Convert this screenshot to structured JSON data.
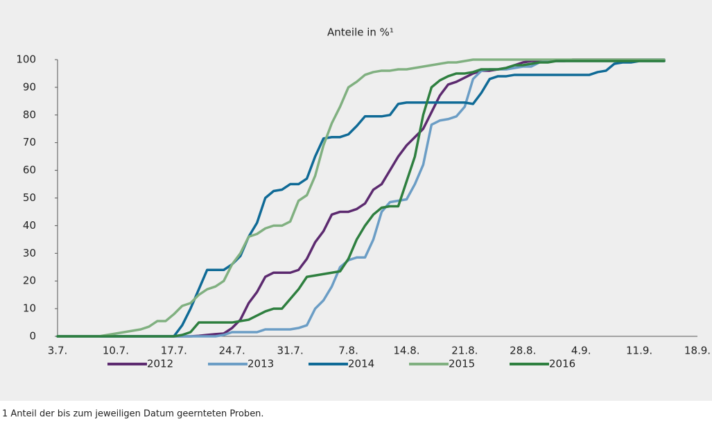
{
  "chart_data": {
    "type": "line",
    "title": "Anteile in %¹",
    "footnote": "1 Anteil der bis zum jeweiligen Datum geernteten Proben.",
    "categories": [
      "3.7.",
      null,
      null,
      null,
      null,
      null,
      null,
      "10.7.",
      null,
      null,
      null,
      null,
      null,
      null,
      "17.7.",
      null,
      null,
      null,
      null,
      null,
      null,
      "24.7.",
      null,
      null,
      null,
      null,
      null,
      null,
      "31.7.",
      null,
      null,
      null,
      null,
      null,
      null,
      "7.8.",
      null,
      null,
      null,
      null,
      null,
      null,
      "14.8.",
      null,
      null,
      null,
      null,
      null,
      null,
      "21.8.",
      null,
      null,
      null,
      null,
      null,
      null,
      "28.8.",
      null,
      null,
      null,
      null,
      null,
      null,
      "4.9.",
      null,
      null,
      null,
      null,
      null,
      null,
      "11.9.",
      null,
      null,
      null,
      null,
      null,
      null,
      "18.9."
    ],
    "ylim": [
      0,
      100
    ],
    "yticks": [
      0,
      10,
      20,
      30,
      40,
      50,
      60,
      70,
      80,
      90,
      100
    ],
    "grid": false,
    "series": [
      {
        "name": "2012",
        "color": "#5c2a6f",
        "values": [
          0,
          0,
          0,
          0,
          0,
          0,
          0,
          0,
          0,
          0,
          0,
          0,
          0,
          0,
          0,
          0,
          0,
          0.2,
          0.5,
          0.8,
          1,
          3,
          6,
          12,
          16,
          21.5,
          23,
          23,
          23,
          24,
          28,
          34,
          38,
          44,
          45,
          45,
          46,
          48,
          53,
          55,
          60,
          65,
          69,
          72,
          75,
          81,
          87,
          91,
          92,
          93.5,
          95,
          96,
          96,
          96.5,
          97,
          98,
          99,
          99.5,
          99.5,
          99.5,
          99.5,
          99.5,
          100,
          100,
          100,
          100,
          100,
          100,
          100,
          100,
          100,
          100,
          100,
          100,
          null,
          null,
          null,
          null
        ]
      },
      {
        "name": "2013",
        "color": "#6b9dc5",
        "values": [
          0,
          0,
          0,
          0,
          0,
          0,
          0,
          0,
          0,
          0,
          0,
          0,
          0,
          0,
          0,
          0,
          0,
          0,
          0,
          0,
          0.5,
          1.5,
          1.5,
          1.5,
          1.5,
          2.5,
          2.5,
          2.5,
          2.5,
          3,
          4,
          10,
          13,
          18,
          25,
          27.5,
          28.5,
          28.5,
          35,
          45,
          48.5,
          49,
          49.5,
          55,
          62,
          76.5,
          78,
          78.5,
          79.5,
          83,
          93,
          96,
          96.5,
          96.5,
          96.5,
          97,
          97.5,
          97.5,
          99,
          99.5,
          99.5,
          99.5,
          99.5,
          99.5,
          99.5,
          99.5,
          99.5,
          99.5,
          99.5,
          99.5,
          100,
          100,
          100,
          100,
          null,
          null,
          null,
          null
        ]
      },
      {
        "name": "2014",
        "color": "#0f6a96",
        "values": [
          0,
          0,
          0,
          0,
          0,
          0,
          0,
          0,
          0,
          0,
          0,
          0,
          0,
          0,
          0,
          4,
          10,
          17,
          24,
          24,
          24,
          26,
          29,
          36,
          41,
          50,
          52.5,
          53,
          55,
          55,
          57,
          65,
          71.5,
          72,
          72,
          73,
          76,
          79.5,
          79.5,
          79.5,
          80,
          84,
          84.5,
          84.5,
          84.5,
          84.5,
          84.5,
          84.5,
          84.5,
          84.5,
          84,
          88,
          93,
          94,
          94,
          94.5,
          94.5,
          94.5,
          94.5,
          94.5,
          94.5,
          94.5,
          94.5,
          94.5,
          94.5,
          95.5,
          96,
          98.5,
          99,
          99,
          99.5,
          99.5,
          99.5,
          99.5,
          null,
          null,
          null,
          null
        ]
      },
      {
        "name": "2015",
        "color": "#80b080",
        "values": [
          0,
          0,
          0,
          0,
          0,
          0,
          0.5,
          1,
          1.5,
          2,
          2.5,
          3.5,
          5.5,
          5.5,
          8,
          11,
          12,
          15,
          17,
          18,
          20,
          26,
          30,
          36,
          37,
          39,
          40,
          40,
          41.5,
          49,
          51,
          58,
          69,
          77,
          83,
          90,
          92,
          94.5,
          95.5,
          96,
          96,
          96.5,
          96.5,
          97,
          97.5,
          98,
          98.5,
          99,
          99,
          99.5,
          100,
          100,
          100,
          100,
          100,
          100,
          100,
          100,
          100,
          100,
          100,
          100,
          100,
          100,
          100,
          100,
          100,
          100,
          100,
          100,
          100,
          100,
          100,
          100,
          null,
          null,
          null,
          null
        ]
      },
      {
        "name": "2016",
        "color": "#2e7f3f",
        "values": [
          0,
          0,
          0,
          0,
          0,
          0,
          0,
          0,
          0,
          0,
          0,
          0,
          0,
          0,
          0,
          0.5,
          1.5,
          5,
          5,
          5,
          5,
          5,
          5.5,
          6,
          7.5,
          9,
          10,
          10,
          13.5,
          17,
          21.5,
          22,
          22.5,
          23,
          23.5,
          28,
          35,
          40,
          44,
          46.5,
          47,
          47,
          56,
          65,
          80,
          90,
          92.5,
          94,
          95,
          95,
          95.5,
          96.5,
          96.5,
          96.5,
          97,
          98,
          98,
          98.5,
          99,
          99,
          99.5,
          99.5,
          99.5,
          99.5,
          99.5,
          99.5,
          99.5,
          99.5,
          99.5,
          99.5,
          99.5,
          99.5,
          99.5,
          99.5,
          null,
          null,
          null,
          null
        ]
      }
    ]
  }
}
